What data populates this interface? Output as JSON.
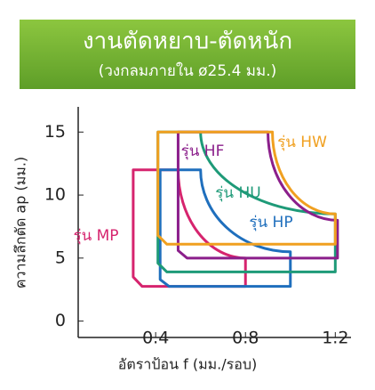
{
  "header": {
    "title": "งานตัดหยาบ-ตัดหนัก",
    "subtitle": "(วงกลมภายใน ø25.4 มม.)"
  },
  "chart_data": {
    "type": "region",
    "x_label": "อัตราป้อน f (มม./รอบ)",
    "y_label": "ความลึกตัด ap (มม.)",
    "xlim": [
      0.055,
      1.27
    ],
    "ylim": [
      -1.3,
      17
    ],
    "xticks": [
      0.4,
      0.8,
      1.2
    ],
    "yticks": [
      0,
      5,
      10,
      15
    ],
    "series": [
      {
        "name": "รุ่น MP",
        "color": "#d6246e",
        "x": [
          0.3,
          0.5,
          0.8,
          0.8,
          0.34,
          0.3
        ],
        "y": [
          12,
          12,
          5,
          2.75,
          2.75,
          3.5
        ]
      },
      {
        "name": "รุ่น HP",
        "color": "#1f6fbd",
        "x": [
          0.42,
          0.6,
          1.0,
          1.0,
          0.46,
          0.42
        ],
        "y": [
          12,
          12,
          5.5,
          2.75,
          2.75,
          3.3
        ]
      },
      {
        "name": "รุ่น HU",
        "color": "#1e9a78",
        "x": [
          0.41,
          0.6,
          1.2,
          1.2,
          0.45,
          0.41
        ],
        "y": [
          15,
          15,
          8.5,
          3.9,
          3.9,
          4.6
        ]
      },
      {
        "name": "รุ่น HF",
        "color": "#8b1f8b",
        "x": [
          0.5,
          0.9,
          1.21,
          1.21,
          0.54,
          0.5
        ],
        "y": [
          15,
          15,
          8,
          5,
          5,
          5.6
        ]
      },
      {
        "name": "รุ่น HW",
        "color": "#f0a020",
        "x": [
          0.41,
          0.92,
          1.2,
          1.2,
          0.45,
          0.41
        ],
        "y": [
          15,
          15,
          8.5,
          6.1,
          6.1,
          6.8
        ]
      }
    ]
  }
}
